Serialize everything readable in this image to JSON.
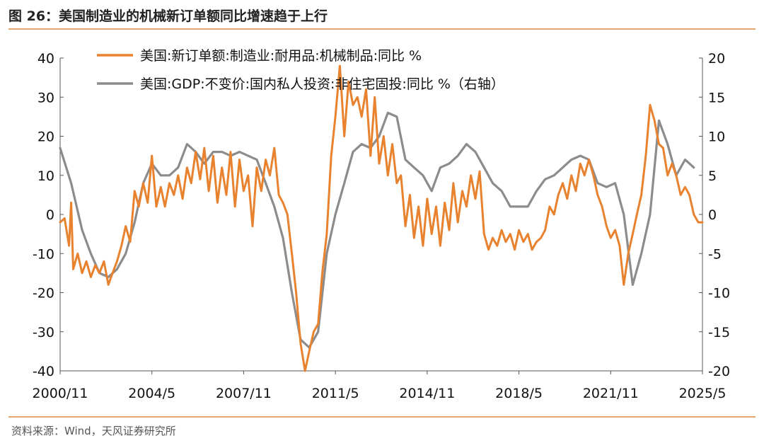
{
  "header": {
    "title": "图 26：美国制造业的机械新订单额同比增速趋于上行"
  },
  "footer": {
    "source": "资料来源：Wind，天风证券研究所"
  },
  "chart_data": {
    "type": "line",
    "x_ticks": [
      "2000/11",
      "2004/5",
      "2007/11",
      "2011/5",
      "2014/11",
      "2018/5",
      "2021/11",
      "2025/5"
    ],
    "y_left": {
      "range": [
        -40,
        40
      ],
      "ticks": [
        40,
        30,
        20,
        10,
        0,
        -10,
        -20,
        -30,
        -40
      ]
    },
    "y_right": {
      "range": [
        -20,
        20
      ],
      "ticks": [
        20,
        15,
        10,
        5,
        0,
        -5,
        -10,
        -15,
        -20
      ]
    },
    "x_range": [
      2000.83,
      2025.33
    ],
    "grid": false,
    "legend_position": "top-center",
    "series": [
      {
        "name": "美国:新订单额:制造业:耐用品:机械制品:同比 %",
        "axis": "left",
        "color": "#E8822E",
        "points": [
          [
            2000.83,
            -2
          ],
          [
            2001.0,
            -1
          ],
          [
            2001.17,
            -8
          ],
          [
            2001.25,
            3
          ],
          [
            2001.33,
            -14
          ],
          [
            2001.5,
            -10
          ],
          [
            2001.67,
            -15
          ],
          [
            2001.83,
            -12
          ],
          [
            2002.0,
            -16
          ],
          [
            2002.17,
            -13
          ],
          [
            2002.33,
            -15
          ],
          [
            2002.5,
            -12
          ],
          [
            2002.67,
            -18
          ],
          [
            2002.83,
            -15
          ],
          [
            2003.0,
            -12
          ],
          [
            2003.17,
            -8
          ],
          [
            2003.33,
            -3
          ],
          [
            2003.5,
            -7
          ],
          [
            2003.67,
            6
          ],
          [
            2003.83,
            2
          ],
          [
            2004.0,
            8
          ],
          [
            2004.17,
            3
          ],
          [
            2004.33,
            15
          ],
          [
            2004.5,
            2
          ],
          [
            2004.67,
            7
          ],
          [
            2004.83,
            2
          ],
          [
            2005.0,
            8
          ],
          [
            2005.17,
            5
          ],
          [
            2005.33,
            10
          ],
          [
            2005.5,
            4
          ],
          [
            2005.67,
            12
          ],
          [
            2005.83,
            8
          ],
          [
            2006.0,
            16
          ],
          [
            2006.17,
            9
          ],
          [
            2006.33,
            17
          ],
          [
            2006.5,
            6
          ],
          [
            2006.67,
            15
          ],
          [
            2006.83,
            3
          ],
          [
            2007.0,
            12
          ],
          [
            2007.17,
            5
          ],
          [
            2007.33,
            16
          ],
          [
            2007.5,
            2
          ],
          [
            2007.67,
            14
          ],
          [
            2007.83,
            6
          ],
          [
            2008.0,
            10
          ],
          [
            2008.17,
            -3
          ],
          [
            2008.33,
            12
          ],
          [
            2008.5,
            6
          ],
          [
            2008.67,
            14
          ],
          [
            2008.83,
            10
          ],
          [
            2009.0,
            17
          ],
          [
            2009.17,
            5
          ],
          [
            2009.33,
            3
          ],
          [
            2009.5,
            0
          ],
          [
            2009.67,
            -10
          ],
          [
            2009.83,
            -20
          ],
          [
            2010.0,
            -33
          ],
          [
            2010.17,
            -40
          ],
          [
            2010.33,
            -35
          ],
          [
            2010.5,
            -30
          ],
          [
            2010.67,
            -28
          ],
          [
            2010.83,
            -15
          ],
          [
            2011.0,
            -5
          ],
          [
            2011.17,
            15
          ],
          [
            2011.33,
            25
          ],
          [
            2011.5,
            38
          ],
          [
            2011.67,
            20
          ],
          [
            2011.83,
            34
          ],
          [
            2012.0,
            28
          ],
          [
            2012.17,
            30
          ],
          [
            2012.33,
            25
          ],
          [
            2012.5,
            32
          ],
          [
            2012.67,
            15
          ],
          [
            2012.83,
            30
          ],
          [
            2013.0,
            13
          ],
          [
            2013.17,
            20
          ],
          [
            2013.33,
            10
          ],
          [
            2013.5,
            18
          ],
          [
            2013.67,
            8
          ],
          [
            2013.83,
            10
          ],
          [
            2014.0,
            -3
          ],
          [
            2014.17,
            5
          ],
          [
            2014.33,
            -6
          ],
          [
            2014.5,
            2
          ],
          [
            2014.67,
            -8
          ],
          [
            2014.83,
            4
          ],
          [
            2015.0,
            -5
          ],
          [
            2015.17,
            2
          ],
          [
            2015.33,
            -8
          ],
          [
            2015.5,
            3
          ],
          [
            2015.67,
            -4
          ],
          [
            2015.83,
            8
          ],
          [
            2016.0,
            -2
          ],
          [
            2016.17,
            6
          ],
          [
            2016.33,
            2
          ],
          [
            2016.5,
            10
          ],
          [
            2016.67,
            4
          ],
          [
            2016.83,
            11
          ],
          [
            2017.0,
            -5
          ],
          [
            2017.17,
            -9
          ],
          [
            2017.33,
            -6
          ],
          [
            2017.5,
            -8
          ],
          [
            2017.67,
            -4
          ],
          [
            2017.83,
            -7
          ],
          [
            2018.0,
            -5
          ],
          [
            2018.17,
            -9
          ],
          [
            2018.33,
            -4
          ],
          [
            2018.5,
            -7
          ],
          [
            2018.67,
            -5
          ],
          [
            2018.83,
            -9
          ],
          [
            2019.0,
            -7
          ],
          [
            2019.17,
            -6
          ],
          [
            2019.33,
            -4
          ],
          [
            2019.5,
            2
          ],
          [
            2019.67,
            0
          ],
          [
            2019.83,
            5
          ],
          [
            2020.0,
            8
          ],
          [
            2020.17,
            4
          ],
          [
            2020.33,
            10
          ],
          [
            2020.5,
            6
          ],
          [
            2020.67,
            13
          ],
          [
            2020.83,
            10
          ],
          [
            2021.0,
            14
          ],
          [
            2021.17,
            10
          ],
          [
            2021.33,
            5
          ],
          [
            2021.5,
            2
          ],
          [
            2021.67,
            -3
          ],
          [
            2021.83,
            -6
          ],
          [
            2022.0,
            -4
          ],
          [
            2022.17,
            -8
          ],
          [
            2022.33,
            -18
          ],
          [
            2022.5,
            -10
          ],
          [
            2022.67,
            -5
          ],
          [
            2022.83,
            0
          ],
          [
            2023.0,
            5
          ],
          [
            2023.17,
            15
          ],
          [
            2023.33,
            28
          ],
          [
            2023.5,
            24
          ],
          [
            2023.67,
            18
          ],
          [
            2023.83,
            17
          ],
          [
            2024.0,
            10
          ],
          [
            2024.17,
            13
          ],
          [
            2024.33,
            10
          ],
          [
            2024.5,
            5
          ],
          [
            2024.67,
            7
          ],
          [
            2024.83,
            5
          ],
          [
            2025.0,
            0
          ],
          [
            2025.17,
            -2
          ],
          [
            2025.33,
            -2
          ]
        ]
      },
      {
        "name": "美国:GDP:不变价:国内私人投资:非住宅固投:同比 %（右轴）",
        "axis": "right",
        "color": "#8C8C8C",
        "points": [
          [
            2000.83,
            8.5
          ],
          [
            2001.25,
            4
          ],
          [
            2001.67,
            -2
          ],
          [
            2002.0,
            -5
          ],
          [
            2002.33,
            -7.5
          ],
          [
            2002.67,
            -8
          ],
          [
            2003.0,
            -7
          ],
          [
            2003.33,
            -5
          ],
          [
            2003.67,
            -1
          ],
          [
            2004.0,
            4
          ],
          [
            2004.33,
            6.5
          ],
          [
            2004.67,
            5
          ],
          [
            2005.0,
            5
          ],
          [
            2005.33,
            6
          ],
          [
            2005.67,
            9
          ],
          [
            2006.0,
            8
          ],
          [
            2006.33,
            6.5
          ],
          [
            2006.67,
            8
          ],
          [
            2007.0,
            8
          ],
          [
            2007.33,
            7.5
          ],
          [
            2007.67,
            8
          ],
          [
            2008.0,
            7.5
          ],
          [
            2008.33,
            7
          ],
          [
            2008.67,
            4
          ],
          [
            2009.0,
            1
          ],
          [
            2009.33,
            -3
          ],
          [
            2009.67,
            -10
          ],
          [
            2010.0,
            -16
          ],
          [
            2010.33,
            -17
          ],
          [
            2010.67,
            -15
          ],
          [
            2011.0,
            -5
          ],
          [
            2011.33,
            0
          ],
          [
            2011.67,
            4
          ],
          [
            2012.0,
            8
          ],
          [
            2012.33,
            9
          ],
          [
            2012.67,
            8.5
          ],
          [
            2013.0,
            10
          ],
          [
            2013.33,
            13
          ],
          [
            2013.67,
            12.5
          ],
          [
            2014.0,
            7
          ],
          [
            2014.33,
            6
          ],
          [
            2014.67,
            5
          ],
          [
            2015.0,
            3
          ],
          [
            2015.33,
            6
          ],
          [
            2015.67,
            6.5
          ],
          [
            2016.0,
            7.5
          ],
          [
            2016.33,
            9
          ],
          [
            2016.67,
            8
          ],
          [
            2017.0,
            6
          ],
          [
            2017.33,
            4
          ],
          [
            2017.67,
            3
          ],
          [
            2018.0,
            1
          ],
          [
            2018.33,
            1
          ],
          [
            2018.67,
            1
          ],
          [
            2019.0,
            3
          ],
          [
            2019.33,
            4.5
          ],
          [
            2019.67,
            5
          ],
          [
            2020.0,
            6
          ],
          [
            2020.33,
            7
          ],
          [
            2020.67,
            7.5
          ],
          [
            2021.0,
            7
          ],
          [
            2021.33,
            4
          ],
          [
            2021.67,
            3.5
          ],
          [
            2022.0,
            4
          ],
          [
            2022.33,
            0
          ],
          [
            2022.67,
            -9
          ],
          [
            2023.0,
            -5
          ],
          [
            2023.33,
            0
          ],
          [
            2023.67,
            12
          ],
          [
            2024.0,
            9
          ],
          [
            2024.33,
            5
          ],
          [
            2024.67,
            7
          ],
          [
            2025.0,
            6
          ]
        ]
      }
    ]
  }
}
